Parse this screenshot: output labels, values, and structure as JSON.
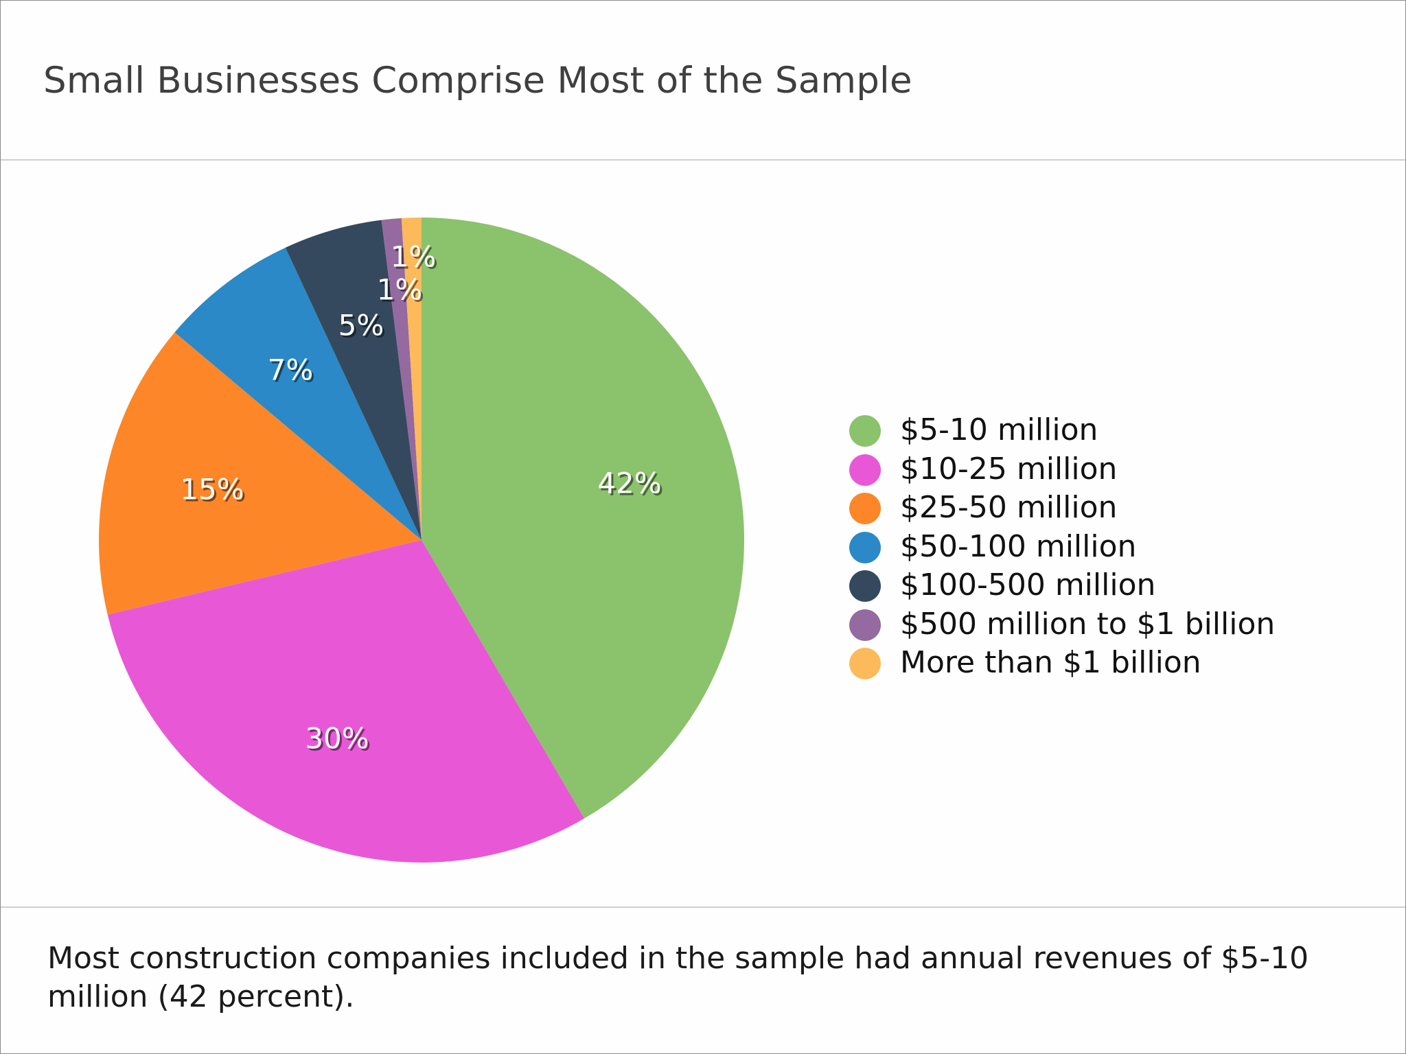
{
  "title": "Small Businesses Comprise Most of the Sample",
  "caption": "Most construction companies included in the sample had annual revenues of $5-10 million (42 percent).",
  "chart_data": {
    "type": "pie",
    "categories": [
      "$5-10 million",
      "$10-25 million",
      "$25-50 million",
      "$50-100 million",
      "$100-500 million",
      "$500 million to $1 billion",
      "More than $1 billion"
    ],
    "values": [
      42,
      30,
      15,
      7,
      5,
      1,
      1
    ],
    "labels": [
      "42%",
      "30%",
      "15%",
      "7%",
      "5%",
      "1%",
      "1%"
    ],
    "colors": [
      "#8bc26c",
      "#e858d6",
      "#fd8628",
      "#2a89c6",
      "#34495e",
      "#946aa0",
      "#fdba5a"
    ],
    "start": "12 o'clock, clockwise",
    "legend_position": "right"
  }
}
